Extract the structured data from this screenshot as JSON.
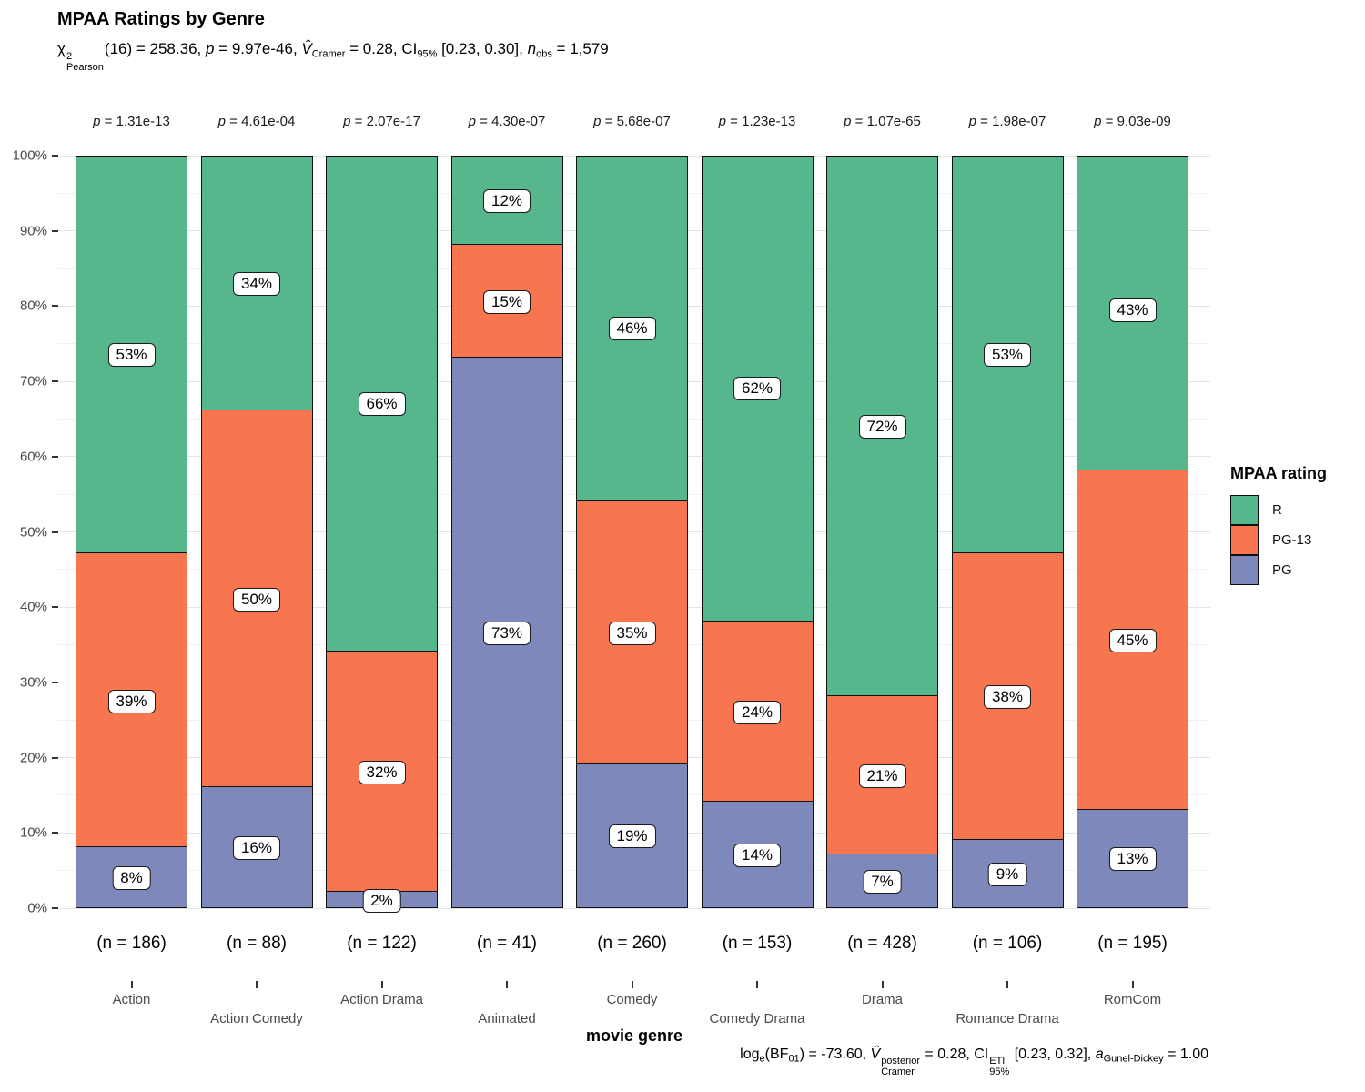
{
  "title": "MPAA Ratings by Genre",
  "subtitle_parts": [
    {
      "s": "n",
      "t": "χ"
    },
    {
      "s": "stack",
      "sup": "2",
      "sub": "Pearson"
    },
    {
      "s": "n",
      "t": "(16) = 258.36, "
    },
    {
      "s": "i",
      "t": "p"
    },
    {
      "s": "n",
      "t": " = 9.97e-46, "
    },
    {
      "s": "i",
      "t": "V̂"
    },
    {
      "s": "sub",
      "t": "Cramer"
    },
    {
      "s": "n",
      "t": " = 0.28, CI"
    },
    {
      "s": "sub",
      "t": "95%"
    },
    {
      "s": "n",
      "t": " [0.23, 0.30], "
    },
    {
      "s": "i",
      "t": "n"
    },
    {
      "s": "sub",
      "t": "obs"
    },
    {
      "s": "n",
      "t": " = 1,579"
    }
  ],
  "caption_parts": [
    {
      "s": "n",
      "t": "log"
    },
    {
      "s": "sub",
      "t": "e"
    },
    {
      "s": "n",
      "t": "(BF"
    },
    {
      "s": "sub",
      "t": "01"
    },
    {
      "s": "n",
      "t": ") = -73.60, "
    },
    {
      "s": "i",
      "t": "V̂"
    },
    {
      "s": "stack",
      "sup": "posterior",
      "sub": "Cramer"
    },
    {
      "s": "n",
      "t": " = 0.28, CI"
    },
    {
      "s": "stack",
      "sup": "ETI",
      "sub": "95%"
    },
    {
      "s": "n",
      "t": " [0.23, 0.32], "
    },
    {
      "s": "i",
      "t": "a"
    },
    {
      "s": "sub",
      "t": "Gunel-Dickey"
    },
    {
      "s": "n",
      "t": " = 1.00"
    }
  ],
  "x_axis_title": "movie genre",
  "y_axis": {
    "ticks": [
      {
        "label": "0%",
        "v": 0
      },
      {
        "label": "10%",
        "v": 10
      },
      {
        "label": "20%",
        "v": 20
      },
      {
        "label": "30%",
        "v": 30
      },
      {
        "label": "40%",
        "v": 40
      },
      {
        "label": "50%",
        "v": 50
      },
      {
        "label": "60%",
        "v": 60
      },
      {
        "label": "70%",
        "v": 70
      },
      {
        "label": "80%",
        "v": 80
      },
      {
        "label": "90%",
        "v": 90
      },
      {
        "label": "100%",
        "v": 100
      }
    ]
  },
  "legend": {
    "title": "MPAA rating",
    "items": [
      {
        "label": "R",
        "color": "#56B78D"
      },
      {
        "label": "PG-13",
        "color": "#F7764F"
      },
      {
        "label": "PG",
        "color": "#7E88BB"
      }
    ]
  },
  "chart_data": {
    "type": "bar",
    "stacked": true,
    "percent": true,
    "title": "MPAA Ratings by Genre",
    "xlabel": "movie genre",
    "ylabel": "",
    "ylim": [
      0,
      100
    ],
    "grid": "horizontal major+minor",
    "legend_position": "right",
    "categories": [
      "Action",
      "Action Comedy",
      "Action Drama",
      "Animated",
      "Comedy",
      "Comedy Drama",
      "Drama",
      "Romance Drama",
      "RomCom"
    ],
    "sample_sizes": [
      "(n = 186)",
      "(n = 88)",
      "(n = 122)",
      "(n = 41)",
      "(n = 260)",
      "(n = 153)",
      "(n = 428)",
      "(n = 106)",
      "(n = 195)"
    ],
    "p_labels": [
      "p = 1.31e-13",
      "p = 4.61e-04",
      "p = 2.07e-17",
      "p = 4.30e-07",
      "p = 5.68e-07",
      "p = 1.23e-13",
      "p = 1.07e-65",
      "p = 1.98e-07",
      "p = 9.03e-09"
    ],
    "stack_order": "bottom-to-top",
    "series": [
      {
        "name": "PG",
        "color": "#7E88BB",
        "values": [
          8,
          16,
          2,
          73,
          19,
          14,
          7,
          9,
          13
        ]
      },
      {
        "name": "PG-13",
        "color": "#F7764F",
        "values": [
          39,
          50,
          32,
          15,
          35,
          24,
          21,
          38,
          45
        ]
      },
      {
        "name": "R",
        "color": "#56B78D",
        "values": [
          53,
          34,
          66,
          12,
          46,
          62,
          72,
          53,
          43
        ]
      }
    ]
  }
}
